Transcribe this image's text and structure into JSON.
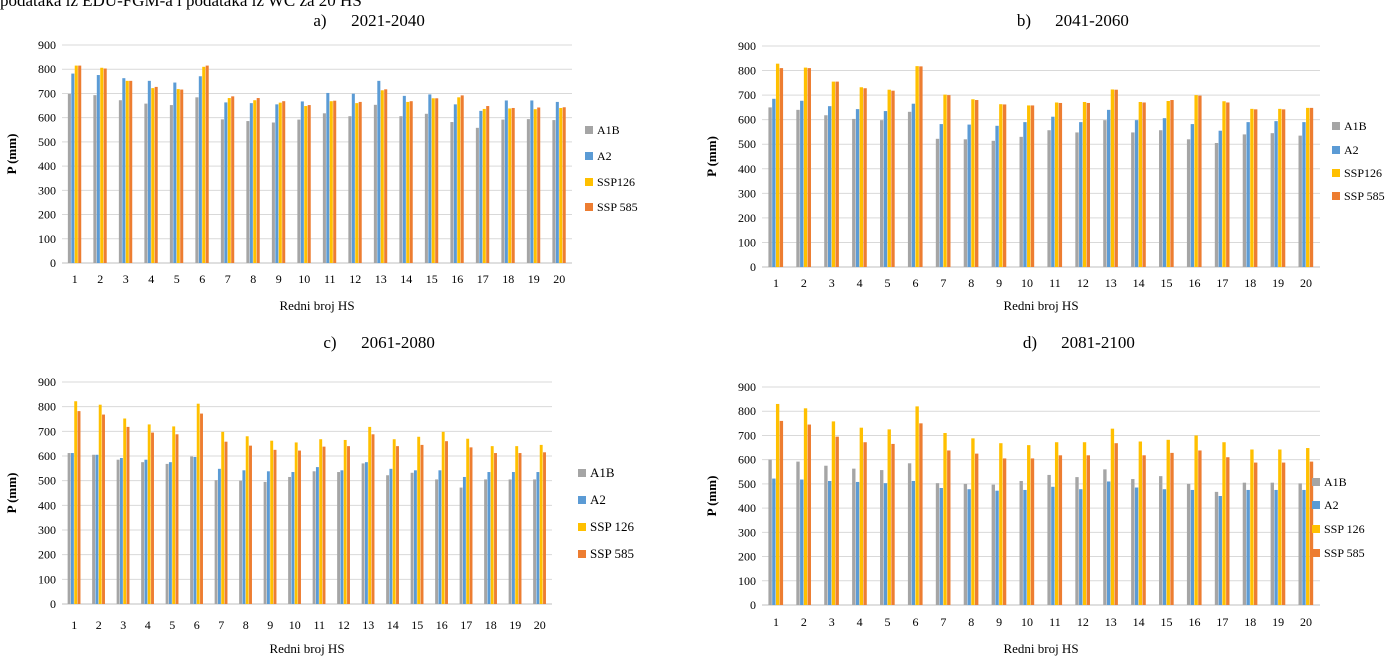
{
  "header_text": "podataka iz EDU-FGM-a i podataka iz WC za 20 HS",
  "series_colors": [
    "#a5a5a5",
    "#5b9bd5",
    "#ffc000",
    "#ed7d31"
  ],
  "chart_data": [
    {
      "type": "bar",
      "panel": "a)",
      "title": "2021-2040",
      "xlabel": "Redni broj HS",
      "ylabel": "P (mm)",
      "ylim": [
        0,
        900
      ],
      "yticks": [
        "0",
        "100",
        "200",
        "300",
        "400",
        "500",
        "600",
        "700",
        "800",
        "900"
      ],
      "categories": [
        "1",
        "2",
        "3",
        "4",
        "5",
        "6",
        "7",
        "8",
        "9",
        "10",
        "11",
        "12",
        "13",
        "14",
        "15",
        "16",
        "17",
        "18",
        "19",
        "20"
      ],
      "legend_position": "right",
      "series": [
        {
          "name": "A1B",
          "values": [
            698,
            693,
            672,
            658,
            652,
            684,
            593,
            586,
            580,
            592,
            618,
            606,
            653,
            606,
            616,
            582,
            558,
            592,
            594,
            590
          ]
        },
        {
          "name": "A2",
          "values": [
            782,
            776,
            763,
            752,
            745,
            771,
            663,
            660,
            655,
            667,
            702,
            699,
            752,
            690,
            696,
            655,
            628,
            671,
            671,
            665
          ]
        },
        {
          "name": "SSP126",
          "values": [
            815,
            806,
            752,
            722,
            718,
            810,
            681,
            672,
            662,
            648,
            668,
            660,
            713,
            665,
            680,
            684,
            636,
            638,
            635,
            640
          ]
        },
        {
          "name": "SSP 585",
          "values": [
            815,
            803,
            752,
            727,
            716,
            815,
            688,
            681,
            668,
            652,
            670,
            665,
            717,
            668,
            680,
            692,
            648,
            640,
            642,
            643
          ]
        }
      ]
    },
    {
      "type": "bar",
      "panel": "b)",
      "title": "2041-2060",
      "xlabel": "Redni broj HS",
      "ylabel": "P (mm)",
      "ylim": [
        0,
        900
      ],
      "yticks": [
        "0",
        "100",
        "200",
        "300",
        "400",
        "500",
        "600",
        "700",
        "800",
        "900"
      ],
      "categories": [
        "1",
        "2",
        "3",
        "4",
        "5",
        "6",
        "7",
        "8",
        "9",
        "10",
        "11",
        "12",
        "13",
        "14",
        "15",
        "16",
        "17",
        "18",
        "19",
        "20"
      ],
      "legend_position": "right",
      "series": [
        {
          "name": "A1B",
          "values": [
            650,
            640,
            618,
            603,
            598,
            632,
            522,
            520,
            514,
            530,
            557,
            548,
            598,
            548,
            557,
            520,
            505,
            540,
            545,
            535
          ]
        },
        {
          "name": "A2",
          "values": [
            685,
            677,
            655,
            643,
            635,
            665,
            582,
            580,
            575,
            590,
            612,
            590,
            640,
            598,
            606,
            582,
            555,
            590,
            594,
            590
          ]
        },
        {
          "name": "SSP126",
          "values": [
            828,
            812,
            755,
            732,
            722,
            818,
            702,
            683,
            663,
            658,
            670,
            672,
            723,
            672,
            676,
            700,
            675,
            644,
            644,
            648
          ]
        },
        {
          "name": "SSP 585",
          "values": [
            810,
            810,
            755,
            728,
            718,
            817,
            700,
            680,
            662,
            658,
            668,
            668,
            722,
            670,
            680,
            698,
            670,
            642,
            642,
            648
          ]
        }
      ]
    },
    {
      "type": "bar",
      "panel": "c)",
      "title": "2061-2080",
      "xlabel": "Redni broj HS",
      "ylabel": "P (mm)",
      "ylim": [
        0,
        900
      ],
      "yticks": [
        "0",
        "100",
        "200",
        "300",
        "400",
        "500",
        "600",
        "700",
        "800",
        "900"
      ],
      "categories": [
        "1",
        "2",
        "3",
        "4",
        "5",
        "6",
        "7",
        "8",
        "9",
        "10",
        "11",
        "12",
        "13",
        "14",
        "15",
        "16",
        "17",
        "18",
        "19",
        "20"
      ],
      "legend_position": "right",
      "series": [
        {
          "name": "A1B",
          "values": [
            612,
            605,
            585,
            575,
            568,
            598,
            502,
            500,
            495,
            515,
            538,
            535,
            570,
            522,
            532,
            505,
            472,
            505,
            505,
            505
          ]
        },
        {
          "name": "A2",
          "values": [
            612,
            605,
            592,
            585,
            575,
            596,
            548,
            542,
            538,
            535,
            555,
            542,
            575,
            548,
            542,
            542,
            515,
            535,
            535,
            535
          ]
        },
        {
          "name": "SSP 126",
          "values": [
            822,
            808,
            752,
            728,
            720,
            812,
            698,
            680,
            662,
            655,
            668,
            665,
            718,
            668,
            678,
            698,
            670,
            640,
            640,
            645
          ]
        },
        {
          "name": "SSP 585",
          "values": [
            782,
            768,
            718,
            695,
            688,
            772,
            658,
            642,
            625,
            622,
            638,
            640,
            688,
            640,
            645,
            660,
            635,
            612,
            612,
            615
          ]
        }
      ]
    },
    {
      "type": "bar",
      "panel": "d)",
      "title": "2081-2100",
      "xlabel": "Redni broj HS",
      "ylabel": "P (mm)",
      "ylim": [
        0,
        900
      ],
      "yticks": [
        "0",
        "100",
        "200",
        "300",
        "400",
        "500",
        "600",
        "700",
        "800",
        "900"
      ],
      "categories": [
        "1",
        "2",
        "3",
        "4",
        "5",
        "6",
        "7",
        "8",
        "9",
        "10",
        "11",
        "12",
        "13",
        "14",
        "15",
        "16",
        "17",
        "18",
        "19",
        "20"
      ],
      "legend_position": "right",
      "series": [
        {
          "name": "A1B",
          "values": [
            600,
            592,
            575,
            563,
            557,
            585,
            503,
            500,
            497,
            512,
            537,
            528,
            560,
            520,
            532,
            500,
            467,
            505,
            505,
            502
          ]
        },
        {
          "name": "A2",
          "values": [
            522,
            518,
            512,
            508,
            503,
            512,
            483,
            478,
            472,
            475,
            488,
            478,
            510,
            485,
            478,
            475,
            450,
            475,
            475,
            475
          ]
        },
        {
          "name": "SSP 126",
          "values": [
            830,
            812,
            758,
            732,
            725,
            820,
            710,
            688,
            668,
            660,
            672,
            672,
            728,
            675,
            682,
            700,
            672,
            642,
            642,
            648
          ]
        },
        {
          "name": "SSP 585",
          "values": [
            760,
            745,
            695,
            672,
            665,
            750,
            638,
            625,
            605,
            605,
            618,
            618,
            668,
            618,
            628,
            638,
            610,
            588,
            588,
            592
          ]
        }
      ]
    }
  ]
}
